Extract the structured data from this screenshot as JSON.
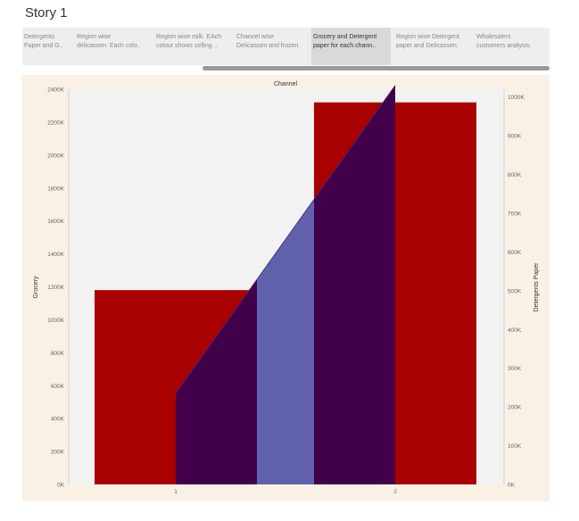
{
  "story": {
    "title": "Story 1"
  },
  "nav": {
    "items": [
      {
        "line1": "Detergents",
        "line2": "Paper and G..",
        "active": false
      },
      {
        "line1": "Region wise",
        "line2": "delicassen. Each colo..",
        "active": false
      },
      {
        "line1": "Region wise milk. EAch",
        "line2": "colour shows selling ..",
        "active": false
      },
      {
        "line1": "Channel wise",
        "line2": "Delicassen and frozen.",
        "active": false
      },
      {
        "line1": "Grocery and Detergent",
        "line2": "paper for each chann..",
        "active": true
      },
      {
        "line1": "Region wise Detergent",
        "line2": "paper and Delicassen.",
        "active": false
      },
      {
        "line1": "Wholesalers",
        "line2": "customers analysis.",
        "active": false
      }
    ]
  },
  "colors": {
    "grocery": "#a90000",
    "detergents_dark": "#42004b",
    "detergents_light": "#6060ac",
    "plot_bg": "#f2f2f2",
    "panel_bg": "#f8f1e4"
  },
  "chart_data": {
    "type": "bar",
    "title": "Channel",
    "categories": [
      "1",
      "2"
    ],
    "series": [
      {
        "name": "Grocery",
        "axis": "left",
        "values": [
          1180000,
          2320000
        ]
      },
      {
        "name": "Detergents Paper",
        "axis": "right",
        "values": [
          235000,
          1030000
        ]
      }
    ],
    "left_axis": {
      "label": "Grocery",
      "ylim": [
        0,
        2400000
      ],
      "ticks": [
        "0K",
        "200K",
        "400K",
        "600K",
        "800K",
        "1000K",
        "1200K",
        "1400K",
        "1600K",
        "1800K",
        "2000K",
        "2200K",
        "2400K"
      ]
    },
    "right_axis": {
      "label": "Detergents Paper",
      "ylim": [
        0,
        1020000
      ],
      "ticks": [
        "0K",
        "100K",
        "200K",
        "300K",
        "400K",
        "500K",
        "600K",
        "700K",
        "800K",
        "900K",
        "1000K"
      ]
    }
  }
}
